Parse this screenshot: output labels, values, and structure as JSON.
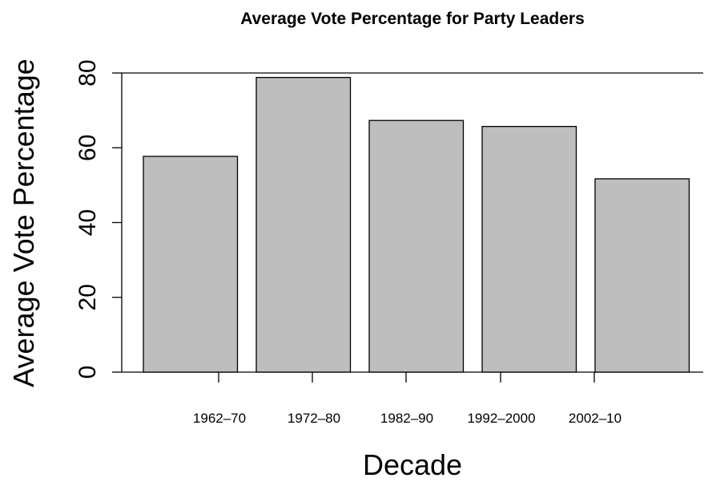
{
  "chart_data": {
    "type": "bar",
    "title": "Average Vote Percentage for Party Leaders",
    "xlabel": "Decade",
    "ylabel": "Average Vote Percentage",
    "categories": [
      "1962–70",
      "1972–80",
      "1982–90",
      "1992–2000",
      "2002–10"
    ],
    "values": [
      57.7,
      78.8,
      67.3,
      65.7,
      51.7
    ],
    "ylim": [
      0,
      80
    ],
    "yticks": [
      0,
      20,
      40,
      60,
      80
    ],
    "bar_color": "#bebebe",
    "edge_color": "#000000",
    "grid": false,
    "legend": "none"
  }
}
